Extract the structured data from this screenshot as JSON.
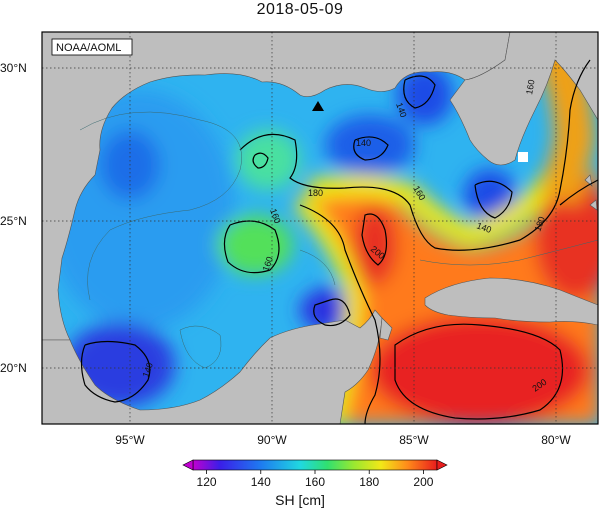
{
  "title": "2018-05-09",
  "credit": "NOAA/AOML",
  "lat_labels": [
    "30°N",
    "25°N",
    "20°N"
  ],
  "lon_labels": [
    "95°W",
    "90°W",
    "85°W",
    "80°W"
  ],
  "contour_labels": {
    "c140a": "140",
    "c140b": "140",
    "c140c": "140",
    "c140d": "140",
    "c160a": "160",
    "c160b": "160",
    "c160c": "160",
    "c160d": "160",
    "c180a": "180",
    "c180b": "180",
    "c200a": "200",
    "c200b": "200"
  },
  "colorbar": {
    "ticks": [
      "120",
      "140",
      "160",
      "180",
      "200"
    ],
    "label": "SH [cm]",
    "min": 115,
    "max": 205
  },
  "colors": {
    "land": "#bebebe",
    "sea_mid": "#22e0a8"
  },
  "markers": [
    {
      "name": "triangle-marker",
      "lon": -88.4,
      "lat": 28.8
    }
  ]
}
